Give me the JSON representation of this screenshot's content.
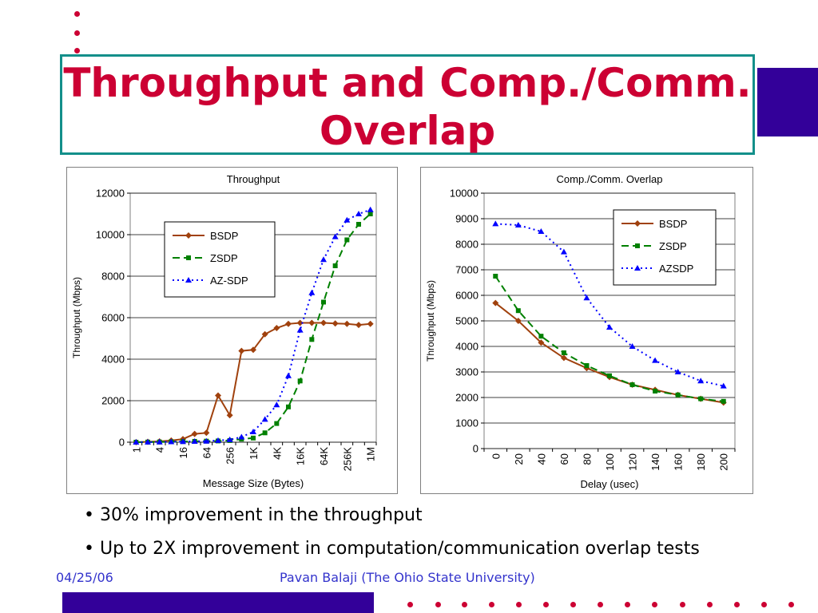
{
  "slide": {
    "title_line1": "Throughput and Comp./Comm.",
    "title_line2": "Overlap",
    "bullets": [
      "• 30% improvement in the throughput",
      "• Up to 2X improvement in computation/communication overlap tests"
    ],
    "footer_date": "04/25/06",
    "footer_author": "Pavan Balaji (The Ohio State University)",
    "accent_color": "#cc0033",
    "brand_color": "#330099",
    "frame_color": "#138f8a"
  },
  "chart_data": [
    {
      "type": "line",
      "title": "Throughput",
      "xlabel": "Message Size (Bytes)",
      "ylabel": "Throughput (Mbps)",
      "ylim": [
        0,
        12000
      ],
      "yticks": [
        0,
        2000,
        4000,
        6000,
        8000,
        10000,
        12000
      ],
      "x": [
        "1",
        "2",
        "4",
        "8",
        "16",
        "32",
        "64",
        "128",
        "256",
        "512",
        "1K",
        "2K",
        "4K",
        "8K",
        "16K",
        "32K",
        "64K",
        "128K",
        "256K",
        "512K",
        "1M"
      ],
      "xtick_labels": [
        "1",
        "4",
        "16",
        "64",
        "256",
        "1K",
        "4K",
        "16K",
        "64K",
        "256K",
        "1M"
      ],
      "legend_position": "upper-left",
      "series": [
        {
          "name": "BSDP",
          "color": "#a0410d",
          "marker": "diamond",
          "dash": "solid",
          "values": [
            0,
            20,
            40,
            80,
            150,
            400,
            450,
            2250,
            1300,
            4400,
            4450,
            5200,
            5500,
            5700,
            5750,
            5750,
            5750,
            5720,
            5700,
            5650,
            5700
          ]
        },
        {
          "name": "ZSDP",
          "color": "#008000",
          "marker": "square",
          "dash": "long",
          "values": [
            0,
            5,
            10,
            20,
            30,
            40,
            50,
            60,
            80,
            150,
            200,
            450,
            900,
            1700,
            2950,
            4950,
            6750,
            8500,
            9750,
            10500,
            11000
          ]
        },
        {
          "name": "AZ-SDP",
          "color": "#0000ff",
          "marker": "triangle",
          "dash": "dot",
          "values": [
            0,
            5,
            10,
            20,
            30,
            40,
            50,
            80,
            120,
            250,
            500,
            1100,
            1800,
            3200,
            5400,
            7200,
            8800,
            9900,
            10700,
            11000,
            11200
          ]
        }
      ]
    },
    {
      "type": "line",
      "title": "Comp./Comm. Overlap",
      "xlabel": "Delay (usec)",
      "ylabel": "Throughput (Mbps)",
      "ylim": [
        0,
        10000
      ],
      "yticks": [
        0,
        1000,
        2000,
        3000,
        4000,
        5000,
        6000,
        7000,
        8000,
        9000,
        10000
      ],
      "x": [
        "0",
        "20",
        "40",
        "60",
        "80",
        "100",
        "120",
        "140",
        "160",
        "180",
        "200"
      ],
      "legend_position": "upper-right",
      "series": [
        {
          "name": "BSDP",
          "color": "#a0410d",
          "marker": "diamond",
          "dash": "solid",
          "values": [
            5700,
            5000,
            4150,
            3550,
            3150,
            2800,
            2500,
            2300,
            2100,
            1950,
            1800
          ]
        },
        {
          "name": "ZSDP",
          "color": "#008000",
          "marker": "square",
          "dash": "long",
          "values": [
            6750,
            5400,
            4400,
            3750,
            3250,
            2850,
            2500,
            2250,
            2100,
            1950,
            1850
          ]
        },
        {
          "name": "AZSDP",
          "color": "#0000ff",
          "marker": "triangle",
          "dash": "dot",
          "values": [
            8800,
            8750,
            8500,
            7700,
            5900,
            4750,
            4000,
            3450,
            3000,
            2650,
            2450
          ]
        }
      ]
    }
  ]
}
